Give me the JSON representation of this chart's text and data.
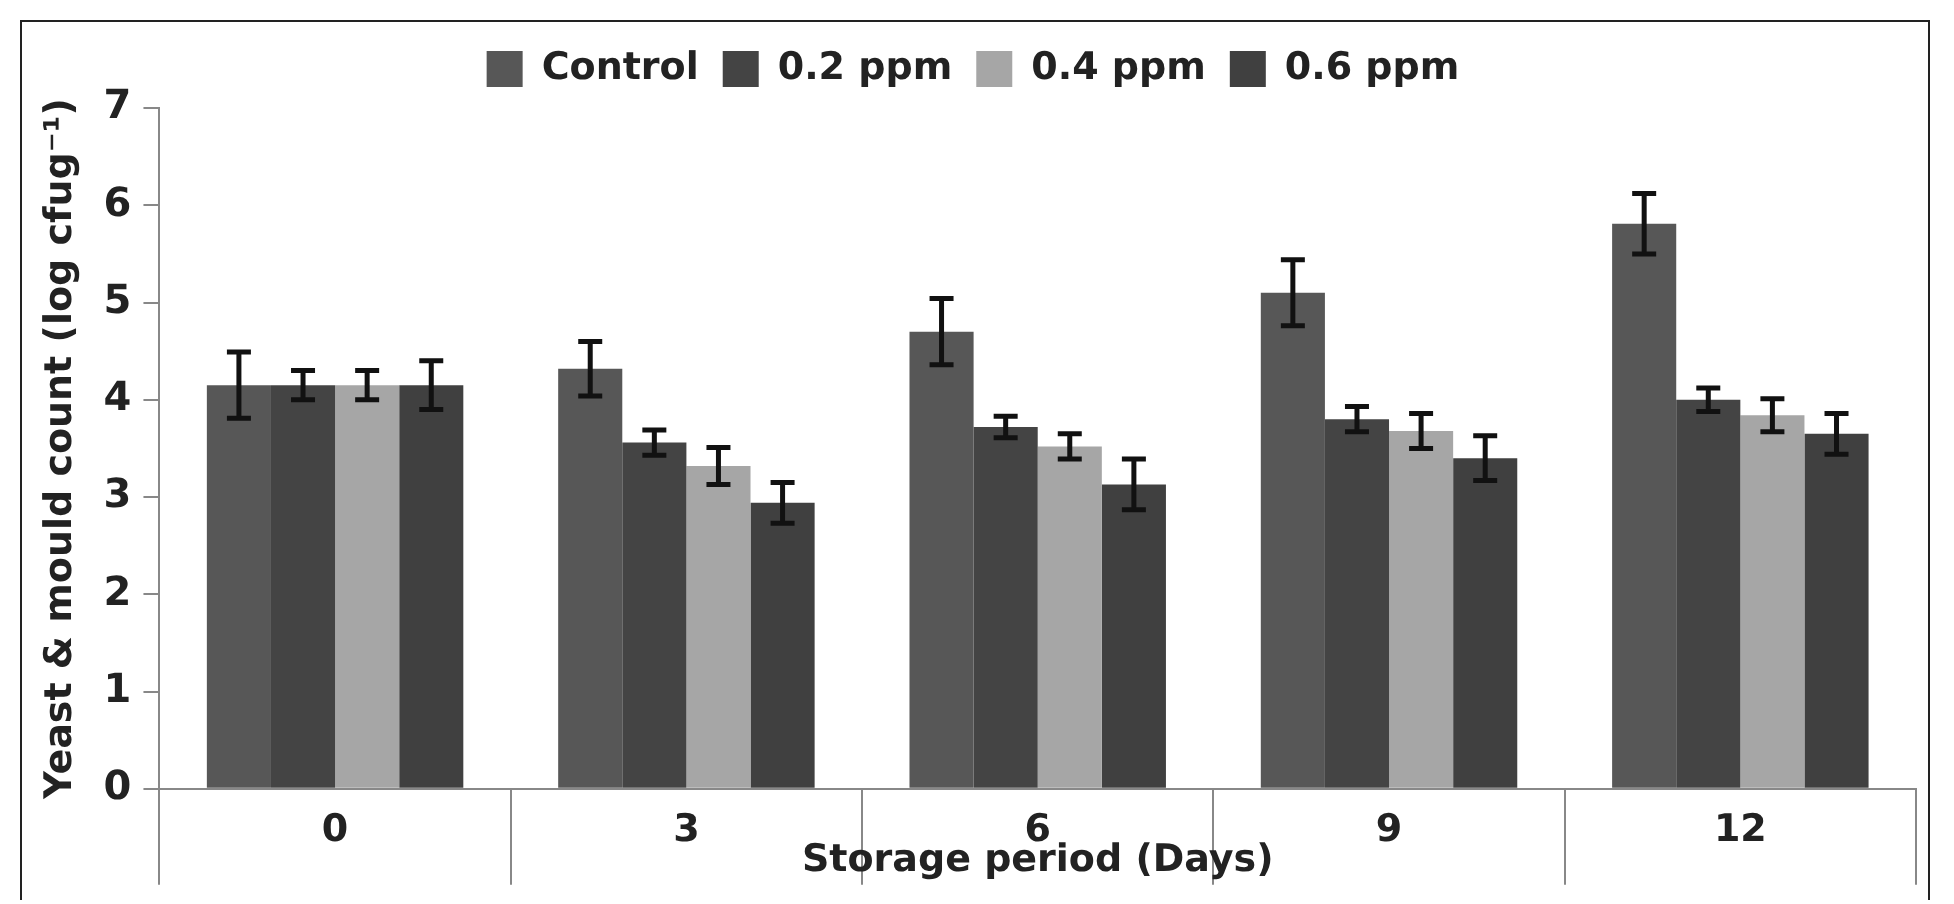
{
  "chart_data": {
    "type": "bar",
    "xlabel": "Storage period (Days)",
    "ylabel": "Yeast & mould count (log cfug⁻¹)",
    "categories": [
      "0",
      "3",
      "6",
      "9",
      "12"
    ],
    "series": [
      {
        "name": "Control",
        "color": "#575757",
        "values": [
          4.15,
          4.32,
          4.7,
          5.1,
          5.81
        ],
        "errors": [
          0.34,
          0.28,
          0.34,
          0.34,
          0.31
        ]
      },
      {
        "name": "0.2 ppm",
        "color": "#444444",
        "values": [
          4.15,
          3.56,
          3.72,
          3.8,
          4.0
        ],
        "errors": [
          0.15,
          0.13,
          0.11,
          0.13,
          0.12
        ]
      },
      {
        "name": "0.4 ppm",
        "color": "#a6a6a6",
        "values": [
          4.15,
          3.32,
          3.52,
          3.68,
          3.84
        ],
        "errors": [
          0.15,
          0.19,
          0.13,
          0.18,
          0.17
        ]
      },
      {
        "name": "0.6 ppm",
        "color": "#404040",
        "values": [
          4.15,
          2.94,
          3.13,
          3.4,
          3.65
        ],
        "errors": [
          0.25,
          0.21,
          0.26,
          0.23,
          0.21
        ]
      }
    ],
    "ylim": [
      0,
      7
    ],
    "yticks": [
      0,
      1,
      2,
      3,
      4,
      5,
      6,
      7
    ],
    "grid": false,
    "legend": "top"
  }
}
